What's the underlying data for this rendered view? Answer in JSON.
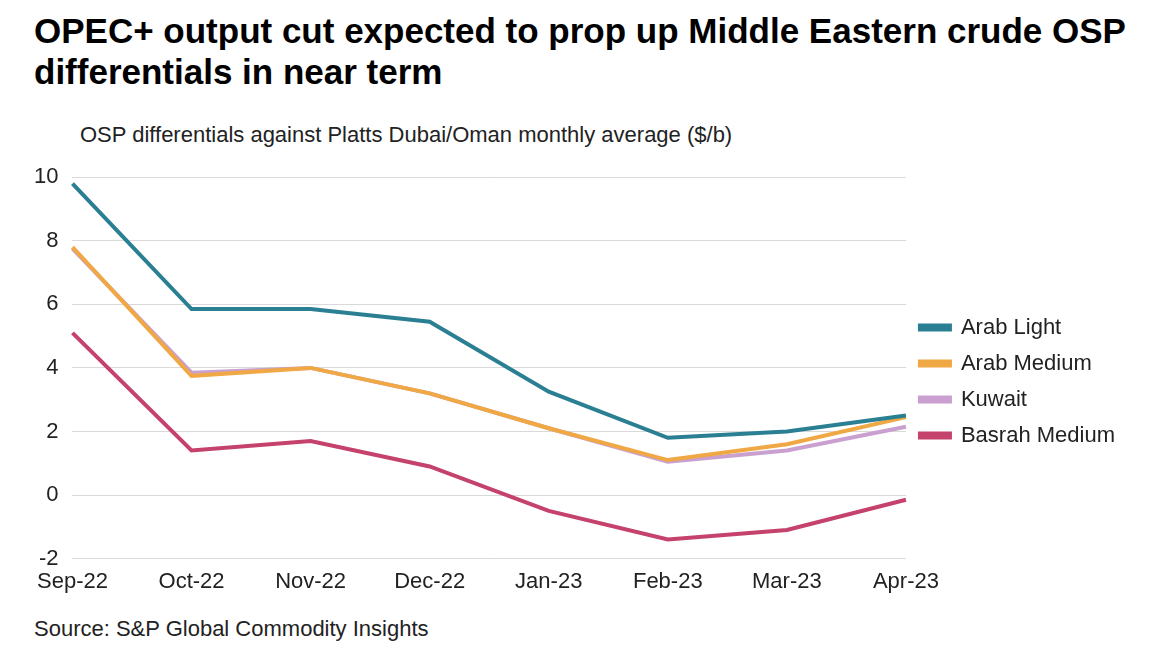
{
  "chart_data": {
    "type": "line",
    "title": "OPEC+ output cut expected to prop up Middle Eastern crude OSP differentials in near term",
    "y_label": "OSP differentials against Platts Dubai/Oman monthly average ($/b)",
    "source": "Source: S&P Global Commodity Insights",
    "categories": [
      "Sep-22",
      "Oct-22",
      "Nov-22",
      "Dec-22",
      "Jan-23",
      "Feb-23",
      "Mar-23",
      "Apr-23"
    ],
    "series": [
      {
        "name": "Arab Light",
        "color": "#2a7f93",
        "values": [
          9.8,
          5.85,
          5.85,
          5.45,
          3.25,
          1.8,
          2.0,
          2.5
        ]
      },
      {
        "name": "Arab Medium",
        "color": "#f0a845",
        "values": [
          7.8,
          3.75,
          4.0,
          3.2,
          2.1,
          1.1,
          1.6,
          2.45
        ]
      },
      {
        "name": "Kuwait",
        "color": "#c9a0d0",
        "values": [
          7.75,
          3.85,
          4.0,
          3.2,
          2.1,
          1.05,
          1.4,
          2.15
        ]
      },
      {
        "name": "Basrah Medium",
        "color": "#c4426b",
        "values": [
          5.1,
          1.4,
          1.7,
          0.9,
          -0.5,
          -1.4,
          -1.1,
          -0.15
        ]
      }
    ],
    "ylim": [
      -2,
      10
    ],
    "yticks": [
      -2,
      0,
      2,
      4,
      6,
      8,
      10
    ],
    "grid": true,
    "legend": "right"
  }
}
